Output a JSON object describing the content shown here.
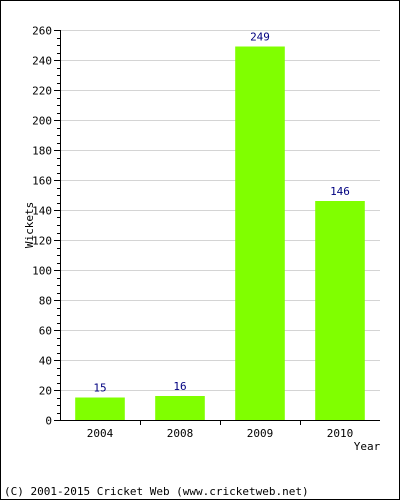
{
  "chart_data": {
    "type": "bar",
    "title": "",
    "xlabel": "Year",
    "ylabel": "Wickets",
    "categories": [
      "2004",
      "2008",
      "2009",
      "2010"
    ],
    "values": [
      15,
      16,
      249,
      146
    ],
    "ylim": [
      0,
      260
    ],
    "y_ticks": [
      0,
      20,
      40,
      60,
      80,
      100,
      120,
      140,
      160,
      180,
      200,
      220,
      240,
      260
    ],
    "y_minor_step": 5,
    "grid": true,
    "legend": "none",
    "colors": {
      "bar": "#80ff00",
      "data_label": "#000080",
      "grid": "#d4d4d4",
      "axis": "#000000",
      "border": "#000000",
      "background": "#ffffff",
      "text": "#000000"
    }
  },
  "footer": {
    "copyright": "(C) 2001-2015 Cricket Web (www.cricketweb.net)"
  }
}
